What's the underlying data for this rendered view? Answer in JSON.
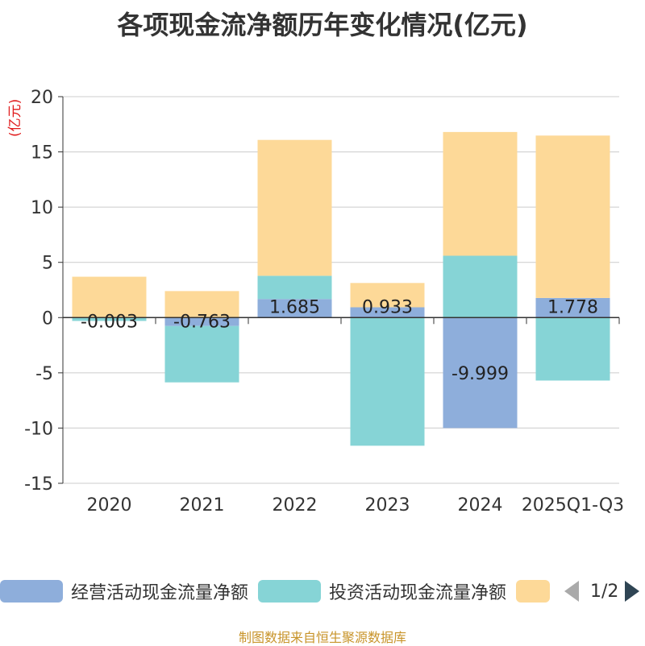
{
  "chart_data": {
    "type": "bar",
    "stacked": true,
    "title": "各项现金流净额历年变化情况(亿元)",
    "ylabel": "(亿元)",
    "categories": [
      "2020",
      "2021",
      "2022",
      "2023",
      "2024",
      "2025Q1-Q3"
    ],
    "ylim": [
      -15,
      20
    ],
    "yticks": [
      20,
      15,
      10,
      5,
      0,
      -5,
      -10,
      -15
    ],
    "series": [
      {
        "name": "经营活动现金流量净额",
        "color": "#8eaedb",
        "values": [
          -0.003,
          -0.763,
          1.685,
          0.933,
          -9.999,
          1.778
        ],
        "labels": [
          "-0.003",
          "-0.763",
          "1.685",
          "0.933",
          "-9.999",
          "1.778"
        ]
      },
      {
        "name": "投资活动现金流量净额",
        "color": "#86d4d6",
        "values": [
          -0.3,
          -5.1,
          2.1,
          -11.6,
          5.6,
          -5.7
        ]
      },
      {
        "name": "",
        "color": "#fdd998",
        "values": [
          3.7,
          2.4,
          12.3,
          2.2,
          11.2,
          14.7
        ]
      }
    ]
  },
  "legend": {
    "items": [
      "经营活动现金流量净额",
      "投资活动现金流量净额",
      ""
    ],
    "page": "1/2"
  },
  "source": "制图数据来自恒生聚源数据库"
}
